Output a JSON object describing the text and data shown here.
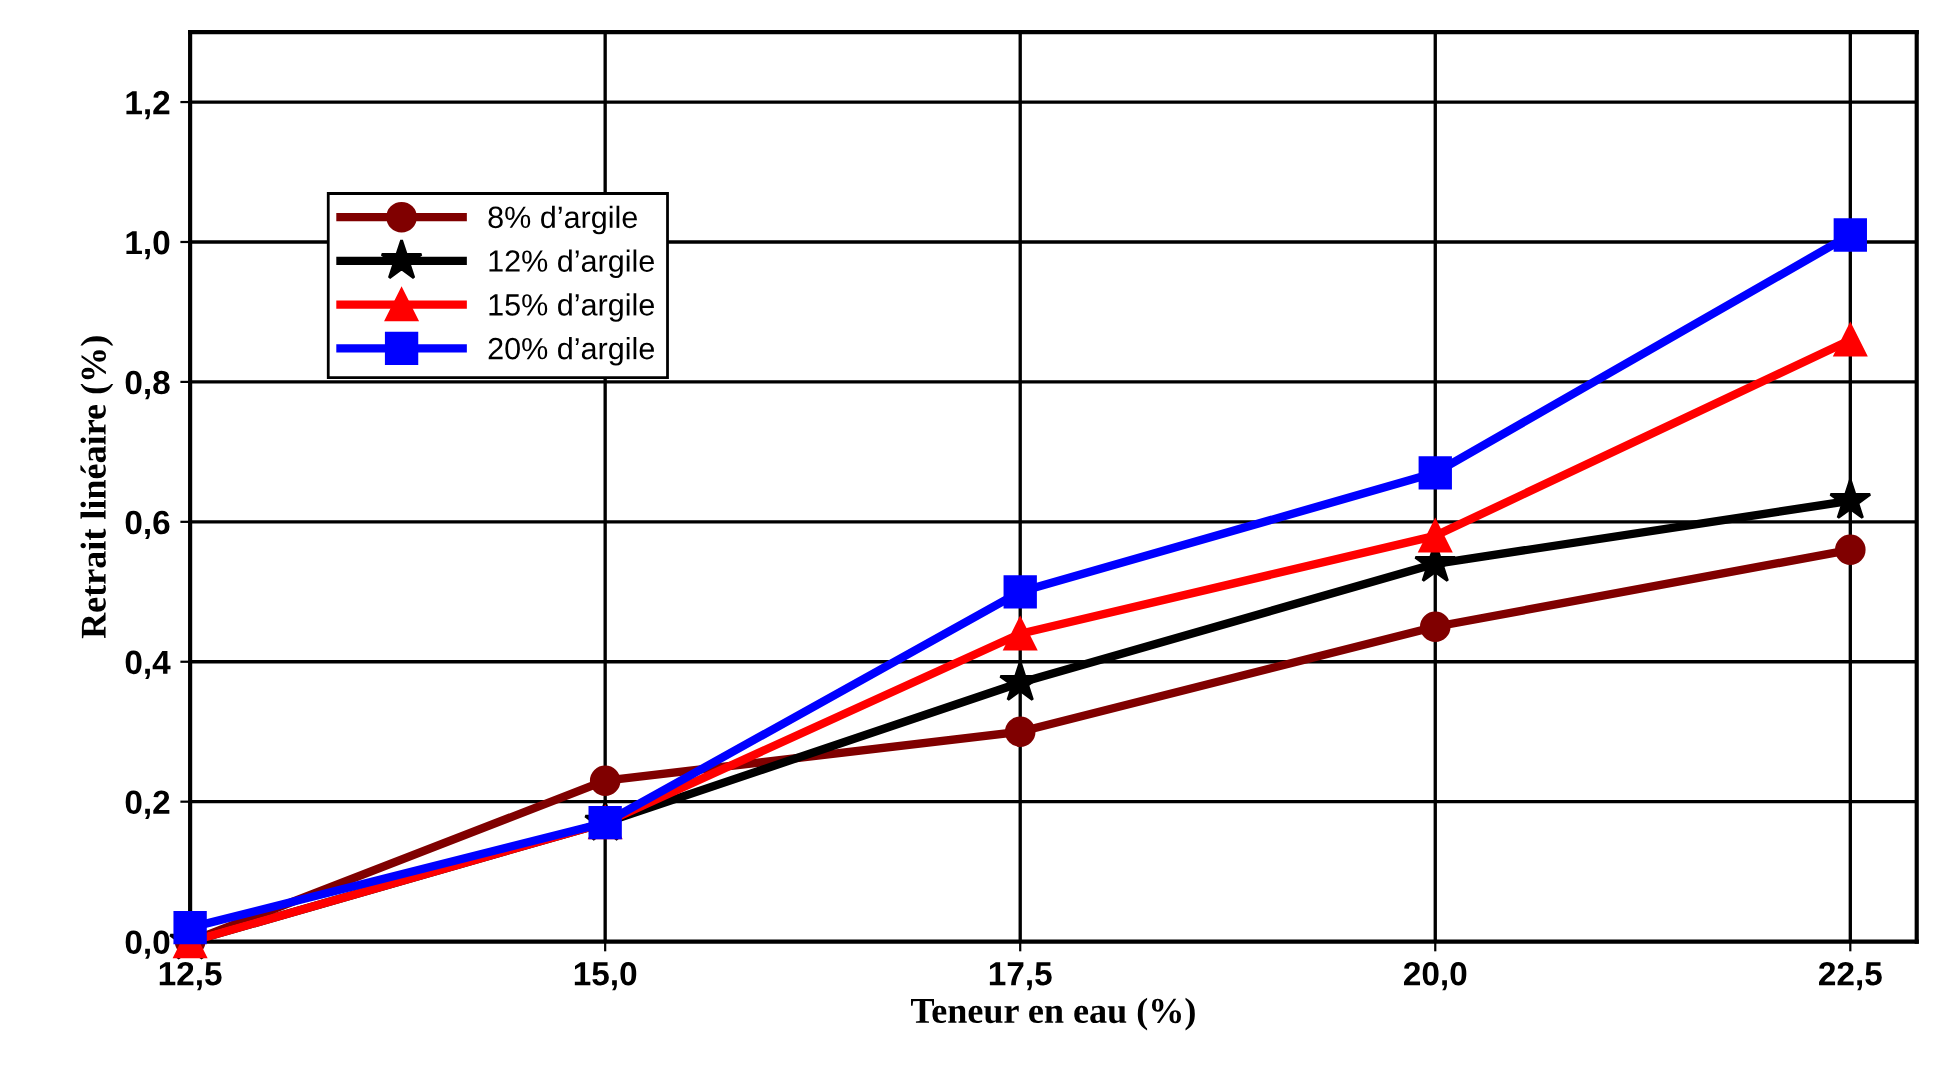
{
  "chart_data": {
    "type": "line",
    "xlabel": "Teneur en eau (%)",
    "ylabel": "Retrait linéaire (%)",
    "x": [
      12.5,
      15.0,
      17.5,
      20.0,
      22.5
    ],
    "series": [
      {
        "name": "8% d’argile",
        "color": "#800000",
        "marker": "circle",
        "values": [
          0.0,
          0.23,
          0.3,
          0.45,
          0.56
        ]
      },
      {
        "name": "12% d’argile",
        "color": "#000000",
        "marker": "star",
        "values": [
          0.0,
          0.17,
          0.37,
          0.54,
          0.63
        ]
      },
      {
        "name": "15% d’argile",
        "color": "#ff0000",
        "marker": "triangle",
        "values": [
          0.0,
          0.17,
          0.44,
          0.58,
          0.86
        ]
      },
      {
        "name": "20% d’argile",
        "color": "#0000ff",
        "marker": "square",
        "values": [
          0.02,
          0.17,
          0.5,
          0.67,
          1.01
        ]
      }
    ],
    "xlim": [
      12.5,
      22.9
    ],
    "ylim": [
      0,
      1.3
    ],
    "xticks": [
      {
        "value": 12.5,
        "label": "12,5"
      },
      {
        "value": 15.0,
        "label": "15,0"
      },
      {
        "value": 17.5,
        "label": "17,5"
      },
      {
        "value": 20.0,
        "label": "20,0"
      },
      {
        "value": 22.5,
        "label": "22,5"
      }
    ],
    "yticks": [
      {
        "value": 0,
        "label": "0,0"
      },
      {
        "value": 0.2,
        "label": "0,2"
      },
      {
        "value": 0.4,
        "label": "0,4"
      },
      {
        "value": 0.6,
        "label": "0,6"
      },
      {
        "value": 0.8,
        "label": "0,8"
      },
      {
        "value": 1.0,
        "label": "1,0"
      },
      {
        "value": 1.2,
        "label": "1,2"
      }
    ],
    "grid": true,
    "legend": "top left",
    "line_style": "solid"
  }
}
